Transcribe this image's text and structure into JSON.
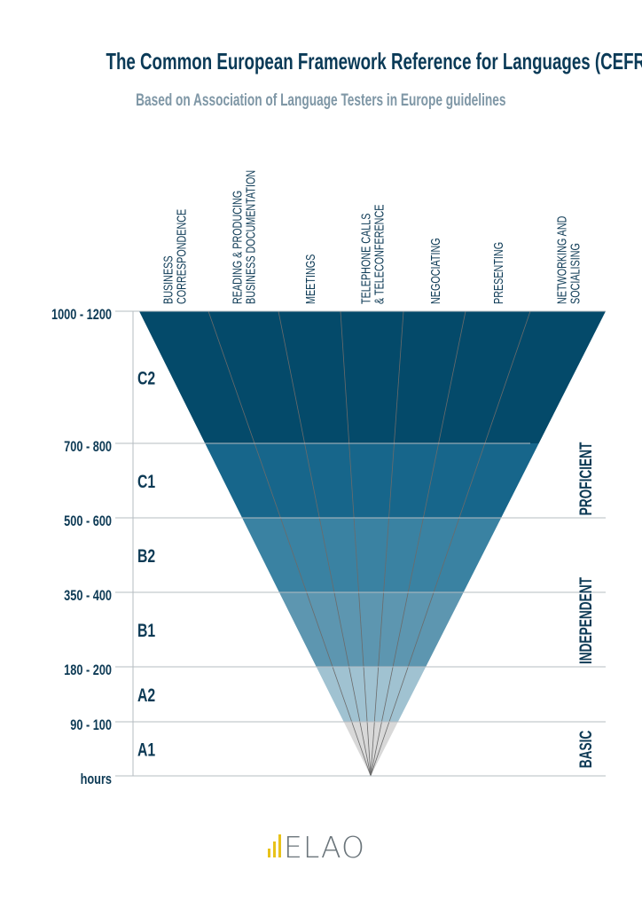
{
  "title": "The Common European Framework Reference for Languages (CEFR)",
  "subtitle": "Based on Association of Language Testers in Europe guidelines",
  "columns": [
    [
      "BUSINESS",
      "CORRESPONDENCE"
    ],
    [
      "READING & PRODUCING",
      "BUSINESS DOCUMENTATION"
    ],
    [
      "MEETINGS"
    ],
    [
      "TELEPHONE CALLS",
      "& TELECONFERENCE"
    ],
    [
      "NEGOCIATING"
    ],
    [
      "PRESENTING"
    ],
    [
      "NETWORKING AND",
      "SOCIALISING"
    ]
  ],
  "levels": [
    {
      "level": "C2",
      "hours": "1000 - 1200",
      "color": "#044a6a"
    },
    {
      "level": "C1",
      "hours": "700 - 800",
      "color": "#17668b"
    },
    {
      "level": "B2",
      "hours": "500 - 600",
      "color": "#3a82a2"
    },
    {
      "level": "B1",
      "hours": "350 - 400",
      "color": "#5d96b0"
    },
    {
      "level": "A2",
      "hours": "180 - 200",
      "color": "#a0c2d1"
    },
    {
      "level": "A1",
      "hours": "90 - 100",
      "color": "#d8d8d8"
    }
  ],
  "axis_unit": "hours",
  "groups": [
    "PROFICIENT",
    "INDEPENDENT",
    "BASIC"
  ],
  "logo_text": "ELAO",
  "logo_colors": {
    "bars": "#e8c21a",
    "text": "#6a747a"
  }
}
